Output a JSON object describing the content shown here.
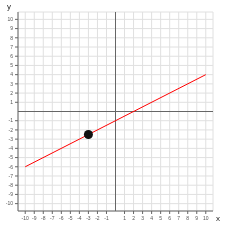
{
  "chart_data": {
    "type": "line",
    "xlabel": "x",
    "ylabel": "y",
    "xlim": [
      -10.8,
      10.8
    ],
    "ylim": [
      -10.8,
      10.8
    ],
    "xticks": [
      -10,
      -9,
      -8,
      -7,
      -6,
      -5,
      -4,
      -3,
      -2,
      -1,
      1,
      2,
      3,
      4,
      5,
      6,
      7,
      8,
      9,
      10
    ],
    "yticks": [
      -10,
      -9,
      -8,
      -7,
      -6,
      -5,
      -4,
      -3,
      -2,
      -1,
      1,
      2,
      3,
      4,
      5,
      6,
      7,
      8,
      9,
      10
    ],
    "grid": true,
    "series": [
      {
        "type": "line",
        "color": "#ff0000",
        "x": [
          -10,
          10
        ],
        "values": [
          -6,
          4
        ]
      },
      {
        "type": "scatter",
        "color": "#111111",
        "x": [
          -3
        ],
        "values": [
          -2.5
        ]
      }
    ]
  }
}
